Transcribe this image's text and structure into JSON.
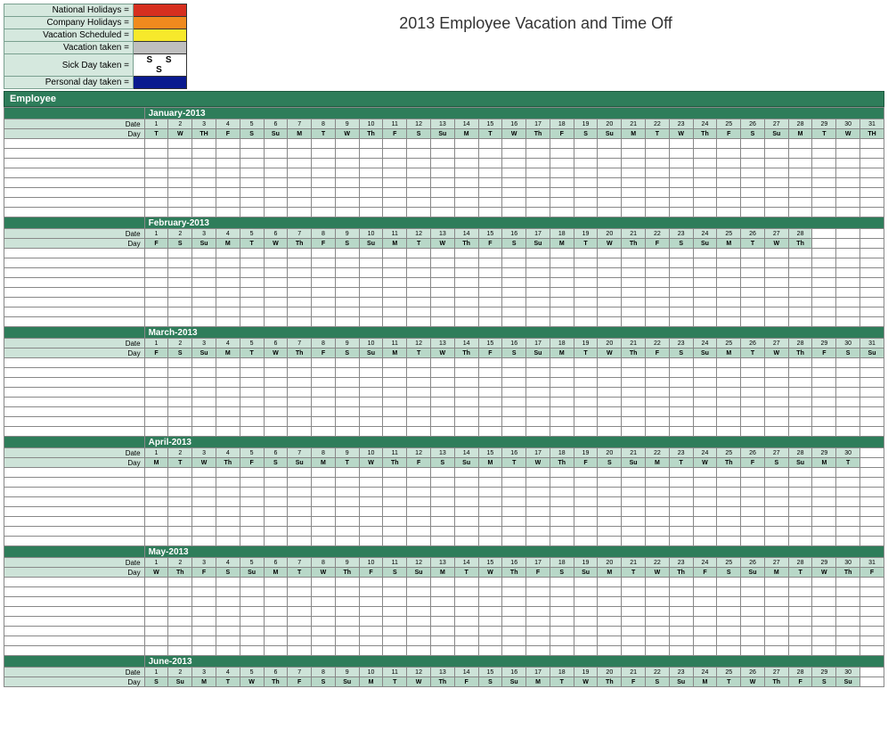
{
  "title": "2013 Employee Vacation and Time Off",
  "legend": {
    "items": [
      {
        "label": "National Holidays =",
        "color": "#d62f1f"
      },
      {
        "label": "Company Holidays =",
        "color": "#f08a1e"
      },
      {
        "label": "Vacation Scheduled =",
        "color": "#f7e92b"
      },
      {
        "label": "Vacation taken =",
        "color": "#bfbfbf"
      },
      {
        "label": "Sick Day taken =",
        "color": "#ffffff",
        "text": "S   S   S"
      },
      {
        "label": "Personal day taken =",
        "color": "#0a1a8f"
      }
    ]
  },
  "employee_header": "Employee",
  "row_labels": {
    "date": "Date",
    "day": "Day"
  },
  "colors": {
    "header_bg": "#2e7d5a",
    "header_fg": "#ffffff",
    "subhdr_bg": "#cde3d8",
    "dayhdr_bg": "#b8d8c8",
    "legend_bg": "#d5e8de",
    "grid": "#888888"
  },
  "blank_rows_per_month": 8,
  "day_columns": 31,
  "months": [
    {
      "name": "January-2013",
      "days": 31,
      "dates": [
        "1",
        "2",
        "3",
        "4",
        "5",
        "6",
        "7",
        "8",
        "9",
        "10",
        "11",
        "12",
        "13",
        "14",
        "15",
        "16",
        "17",
        "18",
        "19",
        "20",
        "21",
        "22",
        "23",
        "24",
        "25",
        "26",
        "27",
        "28",
        "29",
        "30",
        "31"
      ],
      "dows": [
        "T",
        "W",
        "TH",
        "F",
        "S",
        "Su",
        "M",
        "T",
        "W",
        "Th",
        "F",
        "S",
        "Su",
        "M",
        "T",
        "W",
        "Th",
        "F",
        "S",
        "Su",
        "M",
        "T",
        "W",
        "Th",
        "F",
        "S",
        "Su",
        "M",
        "T",
        "W",
        "TH"
      ]
    },
    {
      "name": "February-2013",
      "days": 28,
      "dates": [
        "1",
        "2",
        "3",
        "4",
        "5",
        "6",
        "7",
        "8",
        "9",
        "10",
        "11",
        "12",
        "13",
        "14",
        "15",
        "16",
        "17",
        "18",
        "19",
        "20",
        "21",
        "22",
        "23",
        "24",
        "25",
        "26",
        "27",
        "28"
      ],
      "dows": [
        "F",
        "S",
        "Su",
        "M",
        "T",
        "W",
        "Th",
        "F",
        "S",
        "Su",
        "M",
        "T",
        "W",
        "Th",
        "F",
        "S",
        "Su",
        "M",
        "T",
        "W",
        "Th",
        "F",
        "S",
        "Su",
        "M",
        "T",
        "W",
        "Th"
      ]
    },
    {
      "name": "March-2013",
      "days": 31,
      "dates": [
        "1",
        "2",
        "3",
        "4",
        "5",
        "6",
        "7",
        "8",
        "9",
        "10",
        "11",
        "12",
        "13",
        "14",
        "15",
        "16",
        "17",
        "18",
        "19",
        "20",
        "21",
        "22",
        "23",
        "24",
        "25",
        "26",
        "27",
        "28",
        "29",
        "30",
        "31"
      ],
      "dows": [
        "F",
        "S",
        "Su",
        "M",
        "T",
        "W",
        "Th",
        "F",
        "S",
        "Su",
        "M",
        "T",
        "W",
        "Th",
        "F",
        "S",
        "Su",
        "M",
        "T",
        "W",
        "Th",
        "F",
        "S",
        "Su",
        "M",
        "T",
        "W",
        "Th",
        "F",
        "S",
        "Su"
      ]
    },
    {
      "name": "April-2013",
      "days": 30,
      "dates": [
        "1",
        "2",
        "3",
        "4",
        "5",
        "6",
        "7",
        "8",
        "9",
        "10",
        "11",
        "12",
        "13",
        "14",
        "15",
        "16",
        "17",
        "18",
        "19",
        "20",
        "21",
        "22",
        "23",
        "24",
        "25",
        "26",
        "27",
        "28",
        "29",
        "30"
      ],
      "dows": [
        "M",
        "T",
        "W",
        "Th",
        "F",
        "S",
        "Su",
        "M",
        "T",
        "W",
        "Th",
        "F",
        "S",
        "Su",
        "M",
        "T",
        "W",
        "Th",
        "F",
        "S",
        "Su",
        "M",
        "T",
        "W",
        "Th",
        "F",
        "S",
        "Su",
        "M",
        "T"
      ]
    },
    {
      "name": "May-2013",
      "days": 31,
      "dates": [
        "1",
        "2",
        "3",
        "4",
        "5",
        "6",
        "7",
        "8",
        "9",
        "10",
        "11",
        "12",
        "13",
        "14",
        "15",
        "16",
        "17",
        "18",
        "19",
        "20",
        "21",
        "22",
        "23",
        "24",
        "25",
        "26",
        "27",
        "28",
        "29",
        "30",
        "31"
      ],
      "dows": [
        "W",
        "Th",
        "F",
        "S",
        "Su",
        "M",
        "T",
        "W",
        "Th",
        "F",
        "S",
        "Su",
        "M",
        "T",
        "W",
        "Th",
        "F",
        "S",
        "Su",
        "M",
        "T",
        "W",
        "Th",
        "F",
        "S",
        "Su",
        "M",
        "T",
        "W",
        "Th",
        "F"
      ]
    },
    {
      "name": "June-2013",
      "days": 30,
      "dates": [
        "1",
        "2",
        "3",
        "4",
        "5",
        "6",
        "7",
        "8",
        "9",
        "10",
        "11",
        "12",
        "13",
        "14",
        "15",
        "16",
        "17",
        "18",
        "19",
        "20",
        "21",
        "22",
        "23",
        "24",
        "25",
        "26",
        "27",
        "28",
        "29",
        "30"
      ],
      "dows": [
        "S",
        "Su",
        "M",
        "T",
        "W",
        "Th",
        "F",
        "S",
        "Su",
        "M",
        "T",
        "W",
        "Th",
        "F",
        "S",
        "Su",
        "M",
        "T",
        "W",
        "Th",
        "F",
        "S",
        "Su",
        "M",
        "T",
        "W",
        "Th",
        "F",
        "S",
        "Su"
      ]
    }
  ]
}
